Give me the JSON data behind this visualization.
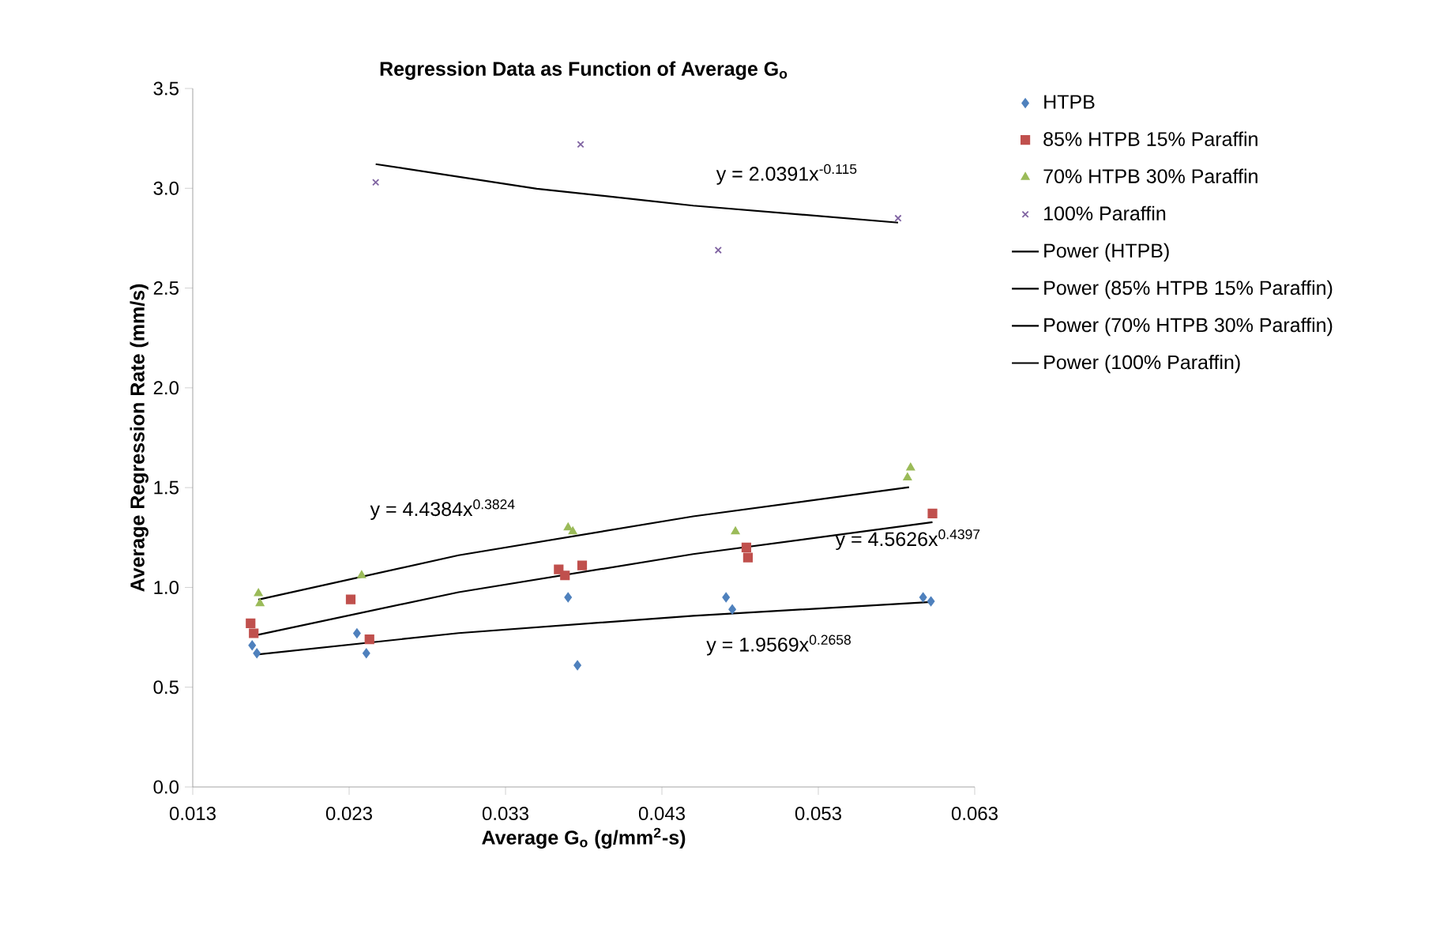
{
  "chart_data": {
    "type": "scatter",
    "title": "Regression Data as Function of Average G$_{o}$",
    "xlabel": "Average G$_{o}$ (g/mm$^{2}$-s)",
    "ylabel": "Average Regression Rate (mm/s)",
    "xlim": [
      0.013,
      0.063
    ],
    "xticks": [
      0.013,
      0.023,
      0.033,
      0.043,
      0.053,
      0.063
    ],
    "ylim": [
      0,
      3.5
    ],
    "yticks": [
      {
        "value": 0,
        "label": "0.0"
      },
      0.5,
      {
        "value": 1,
        "label": "1.0"
      },
      1.5,
      {
        "value": 2,
        "label": "2.0"
      },
      2.5,
      {
        "value": 3,
        "label": "3.0"
      },
      3.5
    ],
    "grid": false,
    "legend": "right",
    "series": [
      {
        "name": "HTPB",
        "marker": "diamond",
        "color": "#4f81bd",
        "x": [
          0.0168,
          0.0171,
          0.0235,
          0.0241,
          0.037,
          0.0376,
          0.0471,
          0.0475,
          0.0597,
          0.0602
        ],
        "values": [
          0.71,
          0.67,
          0.77,
          0.67,
          0.95,
          0.61,
          0.95,
          0.89,
          0.95,
          0.93
        ]
      },
      {
        "name": "85% HTPB 15% Paraffin",
        "marker": "square",
        "color": "#c0504d",
        "x": [
          0.0167,
          0.0169,
          0.0231,
          0.0243,
          0.0364,
          0.0368,
          0.0379,
          0.0484,
          0.0485,
          0.0603
        ],
        "values": [
          0.82,
          0.77,
          0.94,
          0.74,
          1.09,
          1.06,
          1.11,
          1.2,
          1.15,
          1.37
        ]
      },
      {
        "name": "70% HTPB 30% Paraffin",
        "marker": "triangle",
        "color": "#9bbb59",
        "x": [
          0.0172,
          0.0173,
          0.0238,
          0.037,
          0.0373,
          0.0477,
          0.0589,
          0.0587
        ],
        "values": [
          0.97,
          0.92,
          1.06,
          1.3,
          1.28,
          1.28,
          1.6,
          1.55
        ]
      },
      {
        "name": "100% Paraffin",
        "marker": "cross",
        "color": "#8064a2",
        "x": [
          0.0247,
          0.0378,
          0.0466,
          0.0581
        ],
        "values": [
          3.03,
          3.22,
          2.69,
          2.85
        ]
      },
      {
        "name": "Power (HTPB)",
        "type": "line",
        "marker": "none",
        "line_style": "solid",
        "color": "#000000",
        "x": [
          0.0171,
          0.03,
          0.045,
          0.0602
        ],
        "values": [
          0.664,
          0.771,
          0.858,
          0.927
        ]
      },
      {
        "name": "Power (85% HTPB 15% Paraffin)",
        "type": "line",
        "marker": "none",
        "line_style": "solid",
        "color": "#000000",
        "x": [
          0.0167,
          0.03,
          0.045,
          0.0603
        ],
        "values": [
          0.755,
          0.976,
          1.167,
          1.327
        ]
      },
      {
        "name": "Power (70% HTPB 30% Paraffin)",
        "type": "line",
        "marker": "none",
        "line_style": "solid",
        "color": "#000000",
        "x": [
          0.0172,
          0.03,
          0.045,
          0.0588
        ],
        "values": [
          0.939,
          1.161,
          1.356,
          1.502
        ]
      },
      {
        "name": "Power (100% Paraffin)",
        "type": "line",
        "marker": "none",
        "line_style": "solid",
        "color": "#000000",
        "x": [
          0.0247,
          0.035,
          0.045,
          0.0581
        ],
        "values": [
          3.121,
          2.998,
          2.913,
          2.828
        ]
      }
    ],
    "annotations": [
      "y = 2.0391x$^{-0.115}$",
      "y = 4.4384x$^{0.3824}$",
      "y = 4.5626x$^{0.4397}$",
      "y = 1.9569x$^{0.2658}$"
    ]
  }
}
